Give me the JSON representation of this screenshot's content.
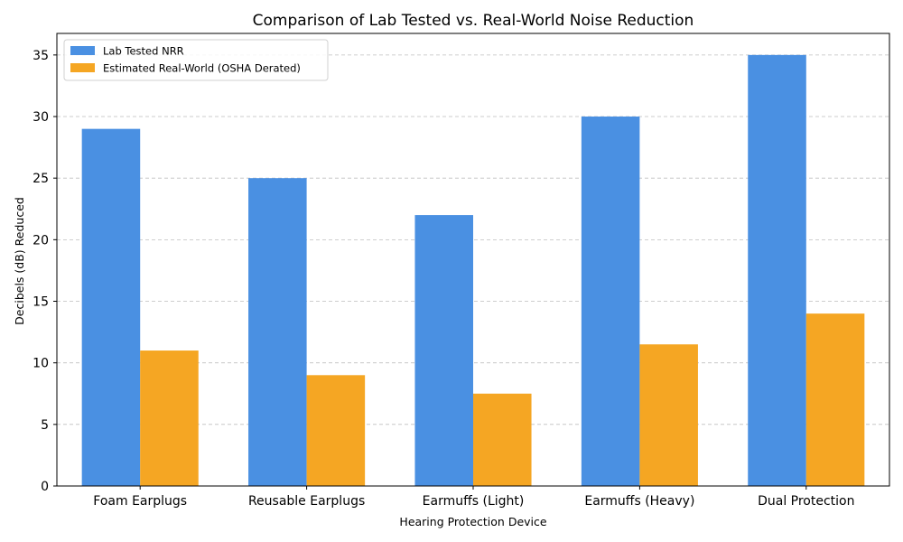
{
  "chart_data": {
    "type": "bar",
    "title": "Comparison of Lab Tested vs. Real-World Noise Reduction",
    "xlabel": "Hearing Protection Device",
    "ylabel": "Decibels (dB) Reduced",
    "categories": [
      "Foam Earplugs",
      "Reusable Earplugs",
      "Earmuffs (Light)",
      "Earmuffs (Heavy)",
      "Dual Protection"
    ],
    "series": [
      {
        "name": "Lab Tested NRR",
        "values": [
          29,
          25,
          22,
          30,
          35
        ],
        "color": "#4a90e2"
      },
      {
        "name": "Estimated Real-World (OSHA Derated)",
        "values": [
          11,
          9,
          7.5,
          11.5,
          14
        ],
        "color": "#f5a623"
      }
    ],
    "ylim": [
      0,
      36.75
    ],
    "yticks": [
      0,
      5,
      10,
      15,
      20,
      25,
      30,
      35
    ],
    "grid": true,
    "grid_axis": "y",
    "legend_position": "top-left"
  }
}
